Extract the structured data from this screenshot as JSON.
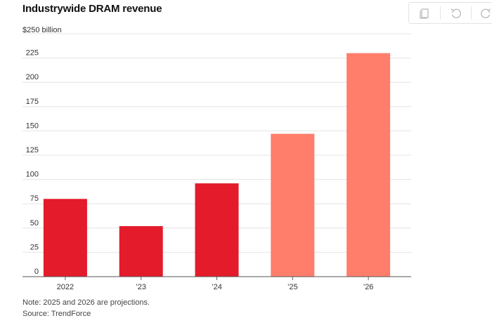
{
  "chart_data": {
    "type": "bar",
    "title": "Industrywide DRAM revenue",
    "ylabel": "$250 billion",
    "xlabel": "",
    "categories": [
      "2022",
      "’23",
      "’24",
      "’25",
      "’26"
    ],
    "values": [
      80,
      52,
      96,
      147,
      230
    ],
    "projected": [
      false,
      false,
      false,
      true,
      true
    ],
    "ylim": [
      0,
      250
    ],
    "yticks": [
      0,
      25,
      50,
      75,
      100,
      125,
      150,
      175,
      200,
      225
    ],
    "grid": true,
    "colors": {
      "actual": "#e31b2a",
      "projection": "#ff7e6b"
    }
  },
  "footer": {
    "note": "Note: 2025 and 2026 are projections.",
    "source": "Source: TrendForce"
  },
  "toolbar": {
    "icons": [
      "copy-icon",
      "undo-icon",
      "redo-icon"
    ]
  }
}
